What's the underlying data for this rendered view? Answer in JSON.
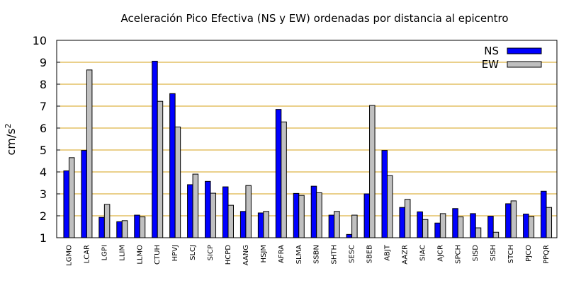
{
  "chart_data": {
    "type": "bar",
    "title": "Aceleración Pico Efectiva (NS y EW) ordenadas por distancia al epicentro",
    "xlabel": "",
    "ylabel_base": "cm/s",
    "ylabel_exp": "2",
    "ylim": [
      1,
      10
    ],
    "yticks": [
      "1",
      "2",
      "3",
      "4",
      "5",
      "6",
      "7",
      "8",
      "9",
      "10"
    ],
    "grid": "horizontal",
    "legend_position": "top-right",
    "categories": [
      "LGMO",
      "LCAR",
      "LGPI",
      "LLIM",
      "LLMO",
      "CTUH",
      "HPVJ",
      "SLCJ",
      "SICP",
      "HCPD",
      "AANG",
      "HSJM",
      "AFRA",
      "SLMA",
      "SSBN",
      "SHTH",
      "SESC",
      "SBEB",
      "ABJT",
      "AAZR",
      "SIAC",
      "AJCR",
      "SPCH",
      "SISD",
      "SISH",
      "STCH",
      "PJCO",
      "PPQR"
    ],
    "series": [
      {
        "name": "NS",
        "color": "#0000ff",
        "values": [
          4.05,
          4.98,
          1.93,
          1.73,
          2.03,
          9.05,
          7.57,
          3.42,
          3.57,
          3.32,
          2.2,
          2.13,
          6.85,
          3.02,
          3.35,
          2.03,
          1.15,
          3.0,
          4.98,
          2.38,
          2.18,
          1.67,
          2.33,
          2.1,
          1.98,
          2.55,
          2.08,
          3.12
        ]
      },
      {
        "name": "EW",
        "color": "#c0c0c0",
        "values": [
          4.65,
          8.65,
          2.52,
          1.78,
          1.95,
          7.22,
          6.05,
          3.9,
          3.03,
          2.48,
          3.38,
          2.2,
          6.28,
          2.93,
          3.05,
          2.2,
          2.03,
          7.03,
          3.83,
          2.75,
          1.83,
          2.1,
          1.95,
          1.45,
          1.25,
          2.68,
          1.97,
          2.38
        ]
      }
    ]
  }
}
